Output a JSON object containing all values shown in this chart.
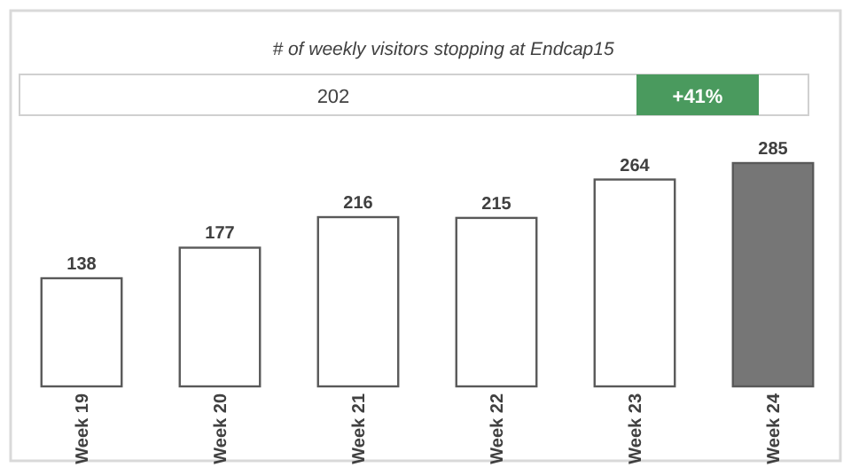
{
  "chart_data": {
    "type": "bar",
    "title": "# of weekly visitors stopping at Endcap15",
    "categories": [
      "Week 19",
      "Week 20",
      "Week 21",
      "Week 22",
      "Week 23",
      "Week 24"
    ],
    "values": [
      138,
      177,
      216,
      215,
      264,
      285
    ],
    "colors": [
      "#ffffff",
      "#ffffff",
      "#ffffff",
      "#ffffff",
      "#ffffff",
      "#767676"
    ],
    "data_labels": true,
    "annotations": [
      "202",
      "+41%"
    ]
  }
}
